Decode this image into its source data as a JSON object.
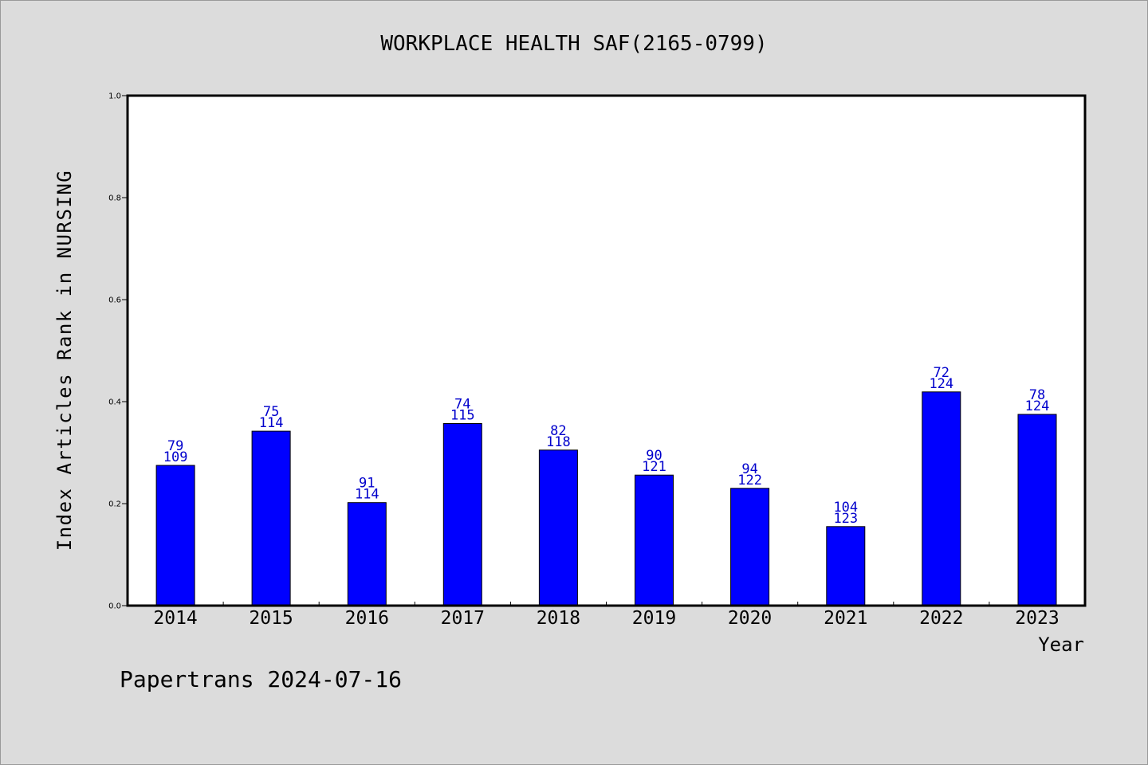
{
  "chart_data": {
    "type": "bar",
    "title": "WORKPLACE HEALTH SAF(2165-0799)",
    "xlabel": "Year",
    "ylabel": "Index Articles Rank in NURSING",
    "ylim": [
      0,
      1.0
    ],
    "yticks": [
      0.0,
      0.2,
      0.4,
      0.6,
      0.8,
      1.0
    ],
    "ytick_labels": [
      "0.0",
      "0.2",
      "0.4",
      "0.6",
      "0.8",
      "1.0"
    ],
    "categories": [
      "2014",
      "2015",
      "2016",
      "2017",
      "2018",
      "2019",
      "2020",
      "2021",
      "2022",
      "2023"
    ],
    "values": [
      0.275,
      0.342,
      0.202,
      0.357,
      0.305,
      0.256,
      0.23,
      0.155,
      0.419,
      0.375
    ],
    "rank_labels": [
      "79",
      "75",
      "91",
      "74",
      "82",
      "90",
      "94",
      "104",
      "72",
      "78"
    ],
    "total_labels": [
      "109",
      "114",
      "114",
      "115",
      "118",
      "121",
      "122",
      "123",
      "124",
      "124"
    ],
    "grid": false,
    "legend": "none",
    "bar_color": "#0000ff",
    "label_color": "#0000cc"
  },
  "footer": {
    "text": "Papertrans 2024-07-16"
  }
}
